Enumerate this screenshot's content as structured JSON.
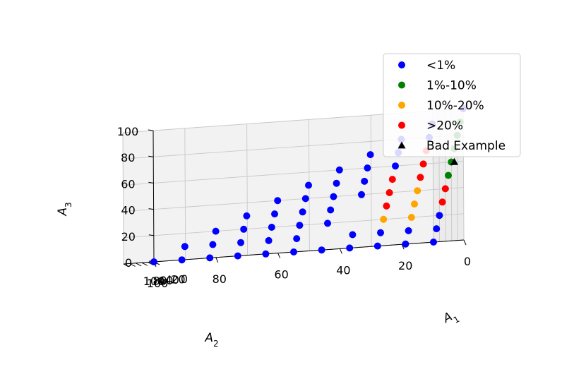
{
  "chart_data": {
    "type": "scatter",
    "projection": "3d",
    "axes": {
      "x": {
        "label_base": "A",
        "label_sub": "1",
        "ticks": [
          "0",
          "20",
          "40",
          "60",
          "80",
          "100"
        ],
        "range": [
          0,
          100
        ]
      },
      "y": {
        "label_base": "A",
        "label_sub": "2",
        "ticks": [
          "0",
          "20",
          "40",
          "60",
          "80",
          "100"
        ],
        "range": [
          0,
          100
        ]
      },
      "z": {
        "label_base": "A",
        "label_sub": "3",
        "ticks": [
          "0",
          "20",
          "40",
          "60",
          "80",
          "100"
        ],
        "range": [
          0,
          100
        ]
      }
    },
    "grid": true,
    "legend_position": "top-right",
    "series": [
      {
        "name": "<1%",
        "color": "#0000ff",
        "marker": "circle",
        "points": [
          [
            0,
            0,
            100
          ],
          [
            0,
            10,
            90
          ],
          [
            0,
            20,
            80
          ],
          [
            0,
            30,
            70
          ],
          [
            0,
            40,
            60
          ],
          [
            0,
            50,
            50
          ],
          [
            0,
            60,
            40
          ],
          [
            0,
            70,
            30
          ],
          [
            0,
            80,
            20
          ],
          [
            0,
            90,
            10
          ],
          [
            0,
            100,
            0
          ],
          [
            10,
            10,
            80
          ],
          [
            10,
            20,
            70
          ],
          [
            10,
            30,
            60
          ],
          [
            10,
            40,
            50
          ],
          [
            10,
            50,
            40
          ],
          [
            10,
            60,
            30
          ],
          [
            10,
            70,
            20
          ],
          [
            10,
            80,
            10
          ],
          [
            10,
            90,
            0
          ],
          [
            20,
            20,
            60
          ],
          [
            20,
            30,
            50
          ],
          [
            20,
            40,
            40
          ],
          [
            20,
            50,
            30
          ],
          [
            20,
            60,
            20
          ],
          [
            20,
            70,
            10
          ],
          [
            20,
            80,
            0
          ],
          [
            30,
            30,
            40
          ],
          [
            30,
            40,
            30
          ],
          [
            30,
            50,
            20
          ],
          [
            30,
            60,
            10
          ],
          [
            30,
            70,
            0
          ],
          [
            40,
            40,
            20
          ],
          [
            40,
            50,
            10
          ],
          [
            40,
            60,
            0
          ],
          [
            50,
            50,
            0
          ],
          [
            60,
            30,
            10
          ],
          [
            60,
            40,
            0
          ],
          [
            70,
            20,
            10
          ],
          [
            70,
            30,
            0
          ],
          [
            80,
            0,
            20
          ],
          [
            80,
            10,
            10
          ],
          [
            80,
            20,
            0
          ],
          [
            90,
            0,
            10
          ],
          [
            90,
            10,
            0
          ],
          [
            100,
            0,
            0
          ]
        ]
      },
      {
        "name": "1%-10%",
        "color": "#008000",
        "marker": "circle",
        "points": [
          [
            10,
            0,
            90
          ],
          [
            20,
            0,
            80
          ],
          [
            30,
            0,
            70
          ],
          [
            40,
            0,
            60
          ],
          [
            50,
            0,
            50
          ]
        ]
      },
      {
        "name": "10%-20%",
        "color": "#ffa500",
        "marker": "circle",
        "points": [
          [
            50,
            10,
            40
          ],
          [
            60,
            10,
            30
          ],
          [
            60,
            20,
            20
          ],
          [
            70,
            10,
            20
          ]
        ]
      },
      {
        "name": ">20%",
        "color": "#ff0000",
        "marker": "circle",
        "points": [
          [
            20,
            10,
            70
          ],
          [
            30,
            10,
            60
          ],
          [
            30,
            20,
            50
          ],
          [
            40,
            10,
            50
          ],
          [
            40,
            20,
            40
          ],
          [
            50,
            20,
            30
          ],
          [
            60,
            0,
            40
          ],
          [
            70,
            0,
            30
          ]
        ]
      },
      {
        "name": "Bad Example",
        "color": "#000000",
        "marker": "triangle",
        "points": [
          [
            30,
            0,
            60
          ]
        ]
      }
    ]
  }
}
